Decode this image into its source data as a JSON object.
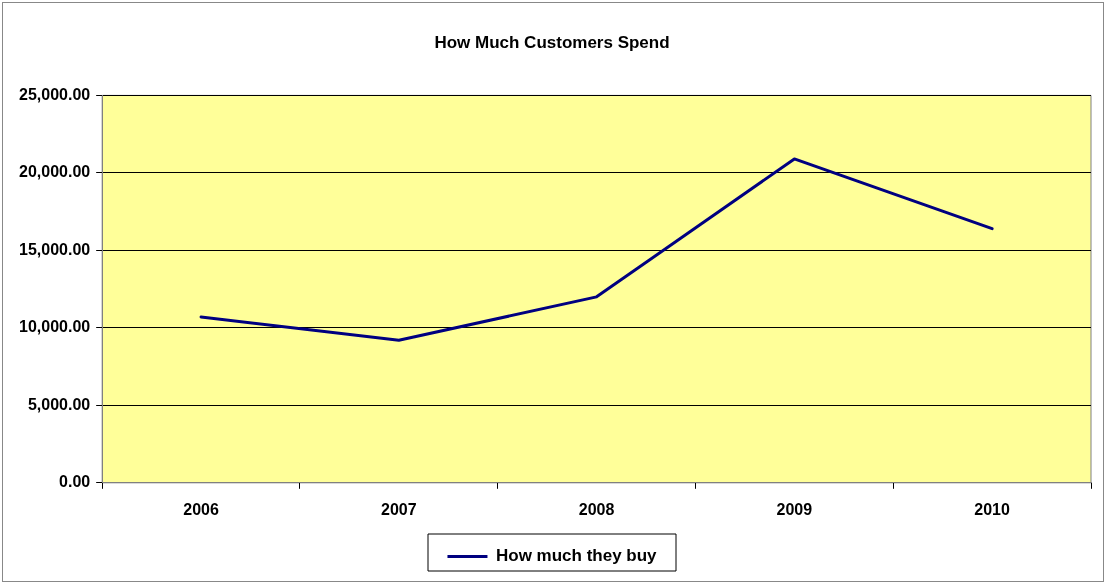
{
  "chart_data": {
    "type": "line",
    "title": "How Much Customers Spend",
    "categories": [
      "2006",
      "2007",
      "2008",
      "2009",
      "2010"
    ],
    "series": [
      {
        "name": "How much they buy",
        "color": "#000080",
        "values": [
          10700,
          9200,
          12000,
          20900,
          16400
        ]
      }
    ],
    "ylim": [
      0,
      25000
    ],
    "yticks": [
      {
        "value": 0,
        "label": "0.00"
      },
      {
        "value": 5000,
        "label": "5,000.00"
      },
      {
        "value": 10000,
        "label": "10,000.00"
      },
      {
        "value": 15000,
        "label": "15,000.00"
      },
      {
        "value": 20000,
        "label": "20,000.00"
      },
      {
        "value": 25000,
        "label": "25,000.00"
      }
    ],
    "grid": "y",
    "legend": "bottom",
    "marker": "none",
    "line_style": "solid"
  }
}
